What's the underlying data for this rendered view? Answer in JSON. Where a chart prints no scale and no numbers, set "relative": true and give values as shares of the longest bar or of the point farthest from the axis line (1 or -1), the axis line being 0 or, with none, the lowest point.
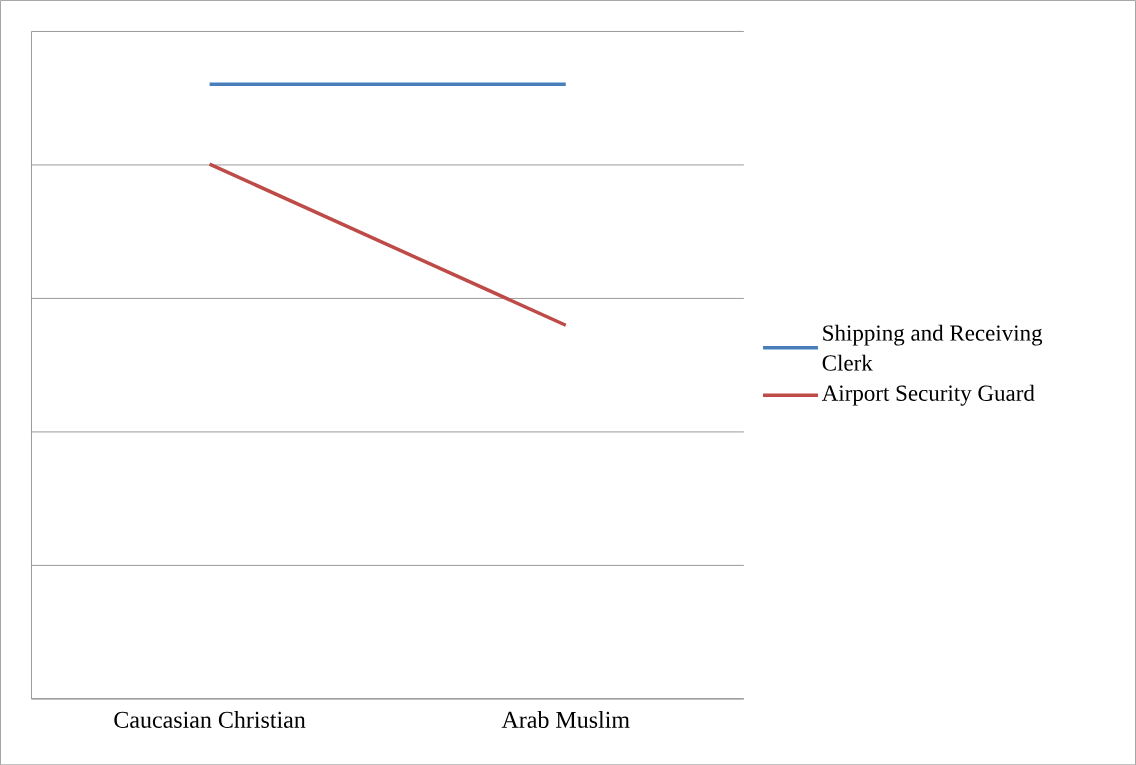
{
  "chart_data": {
    "type": "line",
    "relative": true,
    "categories": [
      "Caucasian Christian",
      "Arab Muslim"
    ],
    "series": [
      {
        "name": "Shipping and Receiving Clerk",
        "color": "#4a7ebb",
        "values": [
          1,
          1
        ]
      },
      {
        "name": "Airport Security Guard",
        "color": "#be4b48",
        "values": [
          0.87,
          0.608
        ]
      }
    ],
    "grid": "y",
    "legend": "right",
    "marker": "none",
    "line_style": "solid"
  }
}
